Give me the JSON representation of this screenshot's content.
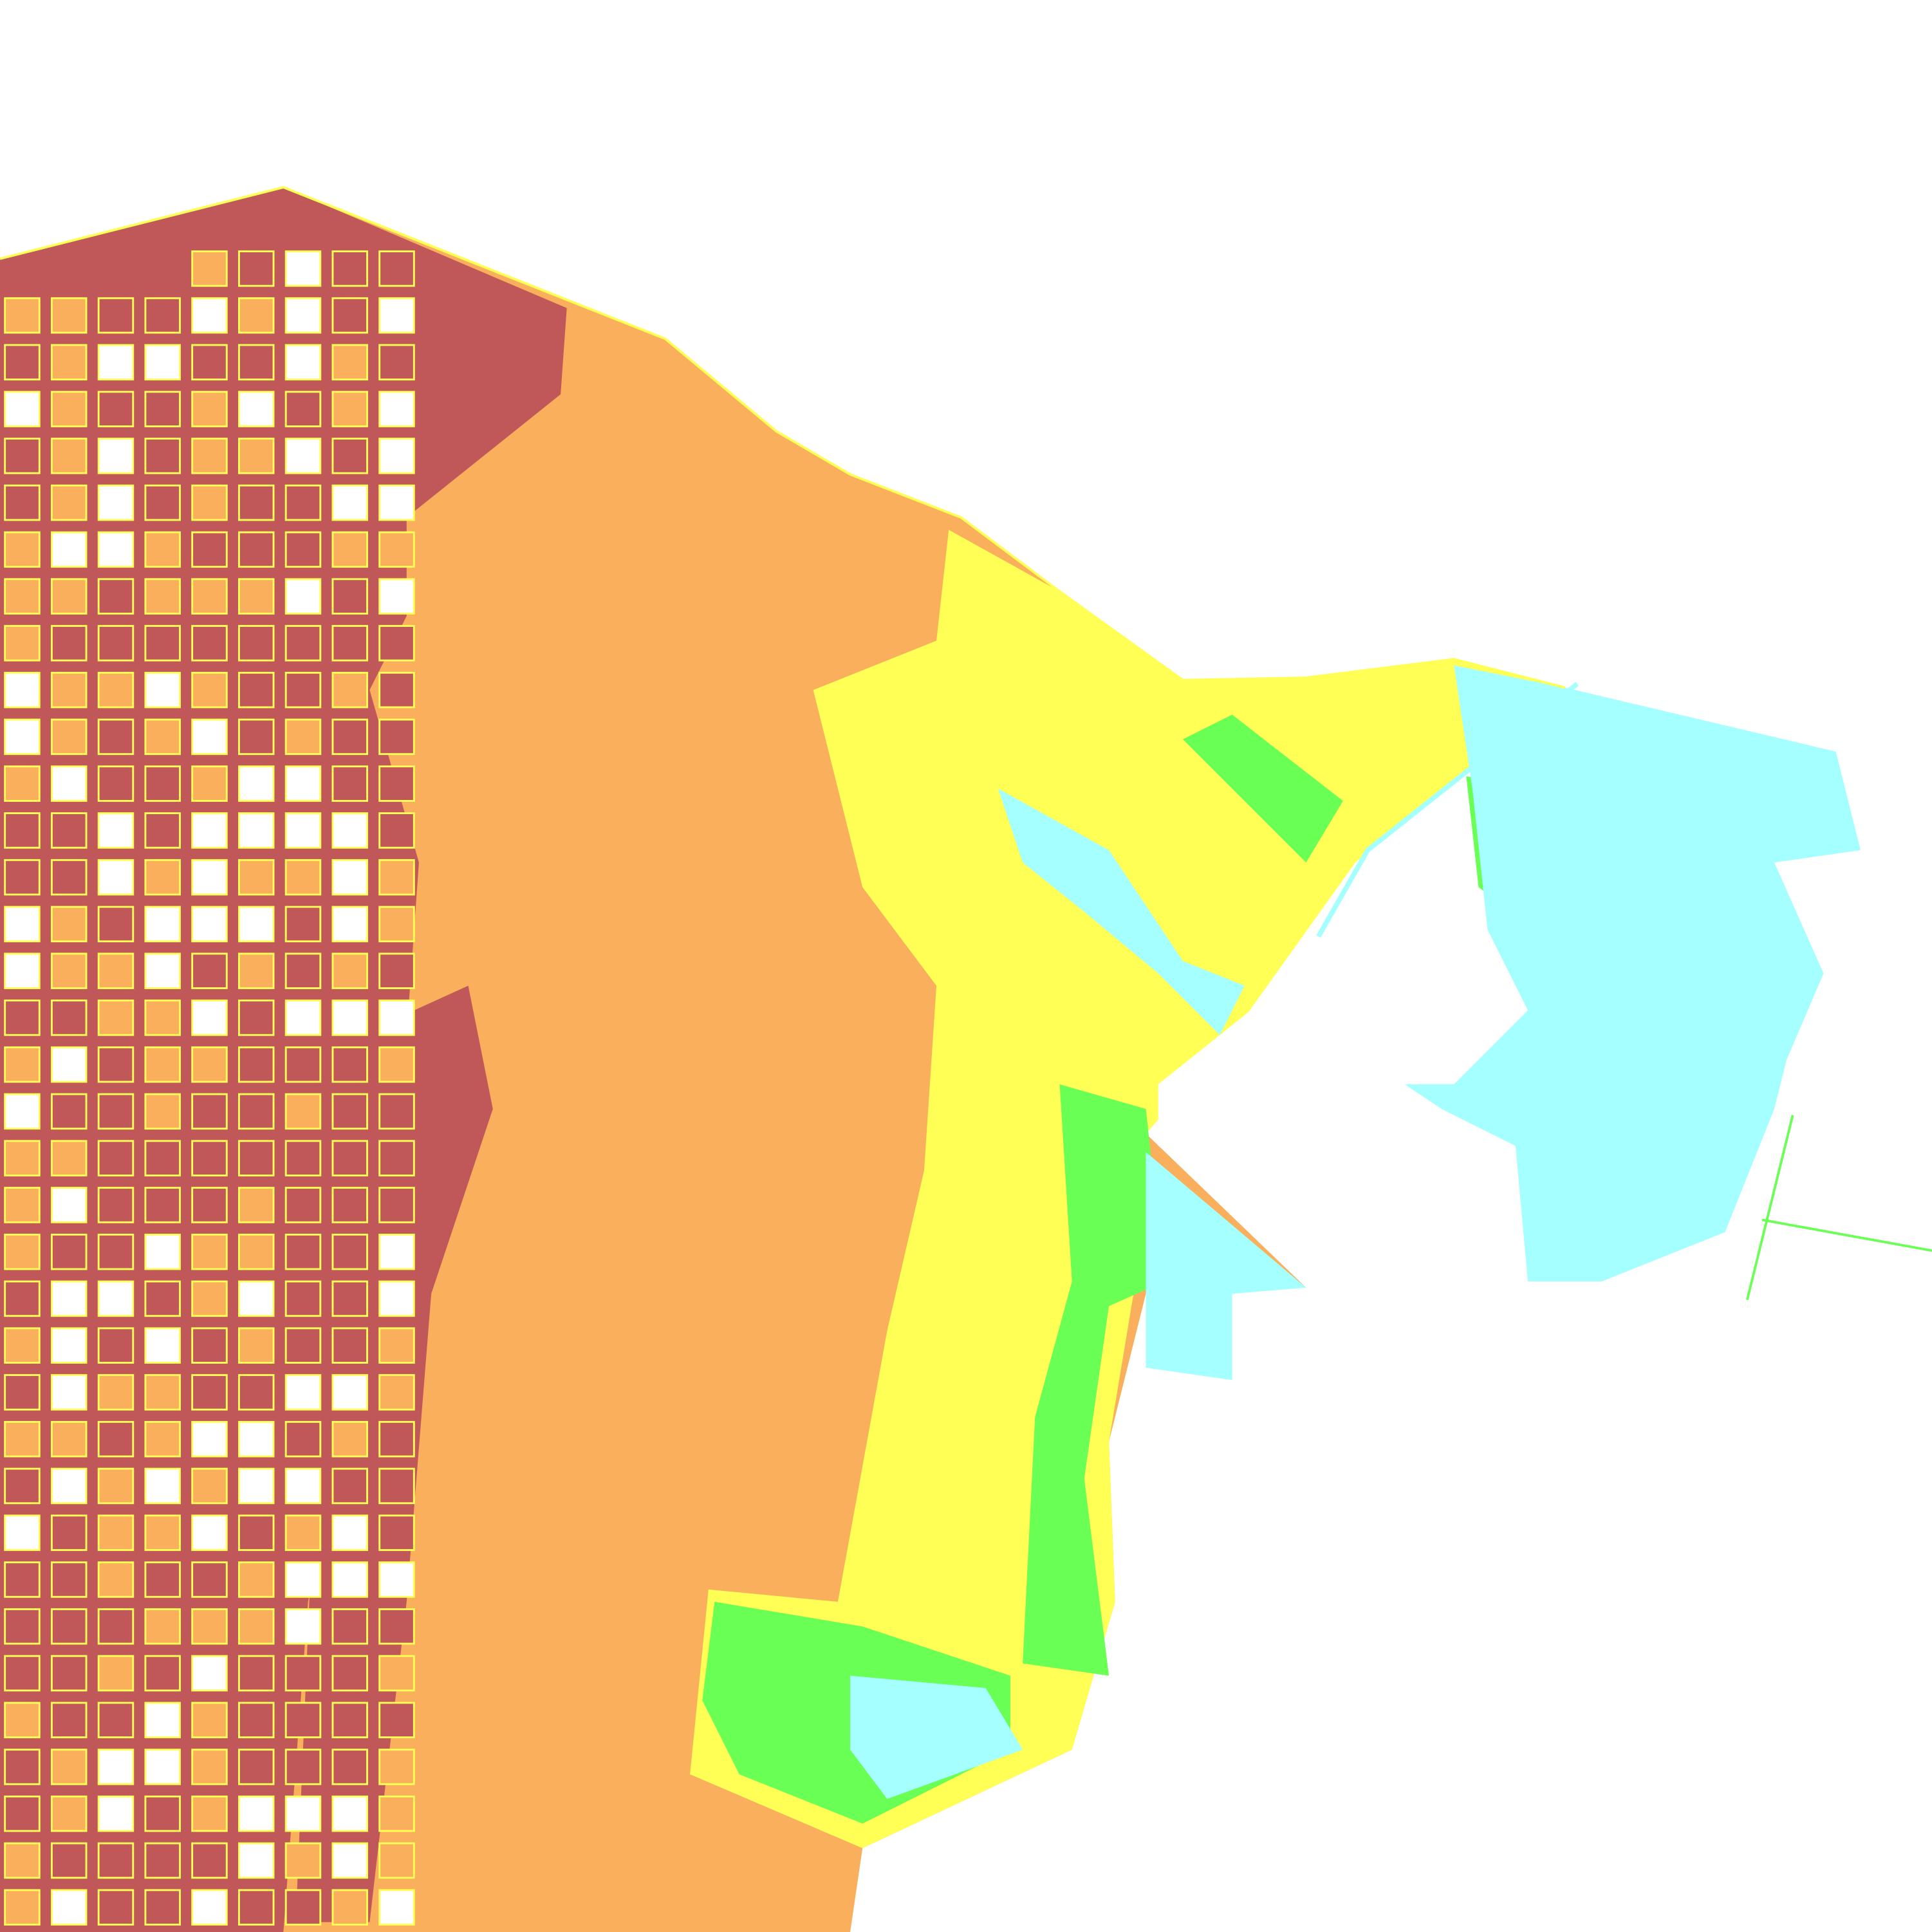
{
  "map": {
    "type": "classified raster",
    "background": "#FFFFFF",
    "classes": [
      {
        "color": "#C0585A"
      },
      {
        "color": "#F9AF5B"
      },
      {
        "color": "#FFFF55"
      },
      {
        "color": "#6AFF55"
      },
      {
        "color": "#A5FFFF"
      }
    ]
  }
}
